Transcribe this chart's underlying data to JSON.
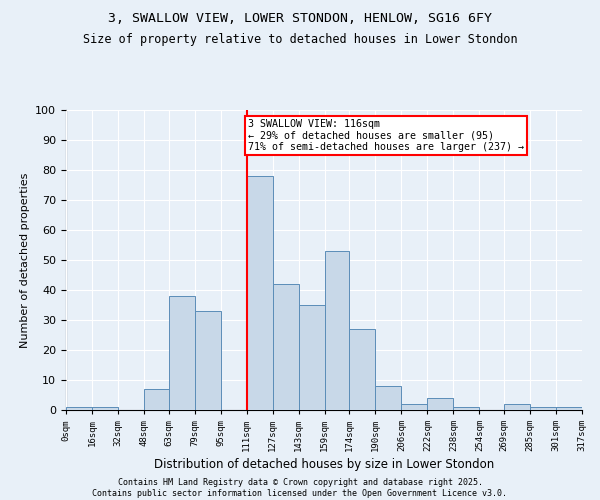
{
  "title1": "3, SWALLOW VIEW, LOWER STONDON, HENLOW, SG16 6FY",
  "title2": "Size of property relative to detached houses in Lower Stondon",
  "xlabel": "Distribution of detached houses by size in Lower Stondon",
  "ylabel": "Number of detached properties",
  "bar_color": "#c8d8e8",
  "bar_edge_color": "#5b8db8",
  "bg_color": "#e8f0f8",
  "grid_color": "#ffffff",
  "vline_value": 111,
  "vline_color": "red",
  "annotation_text": "3 SWALLOW VIEW: 116sqm\n← 29% of detached houses are smaller (95)\n71% of semi-detached houses are larger (237) →",
  "annotation_box_color": "white",
  "annotation_box_edge": "red",
  "bins": [
    0,
    16,
    32,
    48,
    63,
    79,
    95,
    111,
    127,
    143,
    159,
    174,
    190,
    206,
    222,
    238,
    254,
    269,
    285,
    301,
    317
  ],
  "counts": [
    1,
    1,
    0,
    7,
    38,
    33,
    0,
    78,
    42,
    35,
    53,
    27,
    8,
    2,
    4,
    1,
    0,
    2,
    1,
    1
  ],
  "tick_labels": [
    "0sqm",
    "16sqm",
    "32sqm",
    "48sqm",
    "63sqm",
    "79sqm",
    "95sqm",
    "111sqm",
    "127sqm",
    "143sqm",
    "159sqm",
    "174sqm",
    "190sqm",
    "206sqm",
    "222sqm",
    "238sqm",
    "254sqm",
    "269sqm",
    "285sqm",
    "301sqm",
    "317sqm"
  ],
  "footnote": "Contains HM Land Registry data © Crown copyright and database right 2025.\nContains public sector information licensed under the Open Government Licence v3.0.",
  "ylim": [
    0,
    100
  ],
  "yticks": [
    0,
    10,
    20,
    30,
    40,
    50,
    60,
    70,
    80,
    90,
    100
  ]
}
